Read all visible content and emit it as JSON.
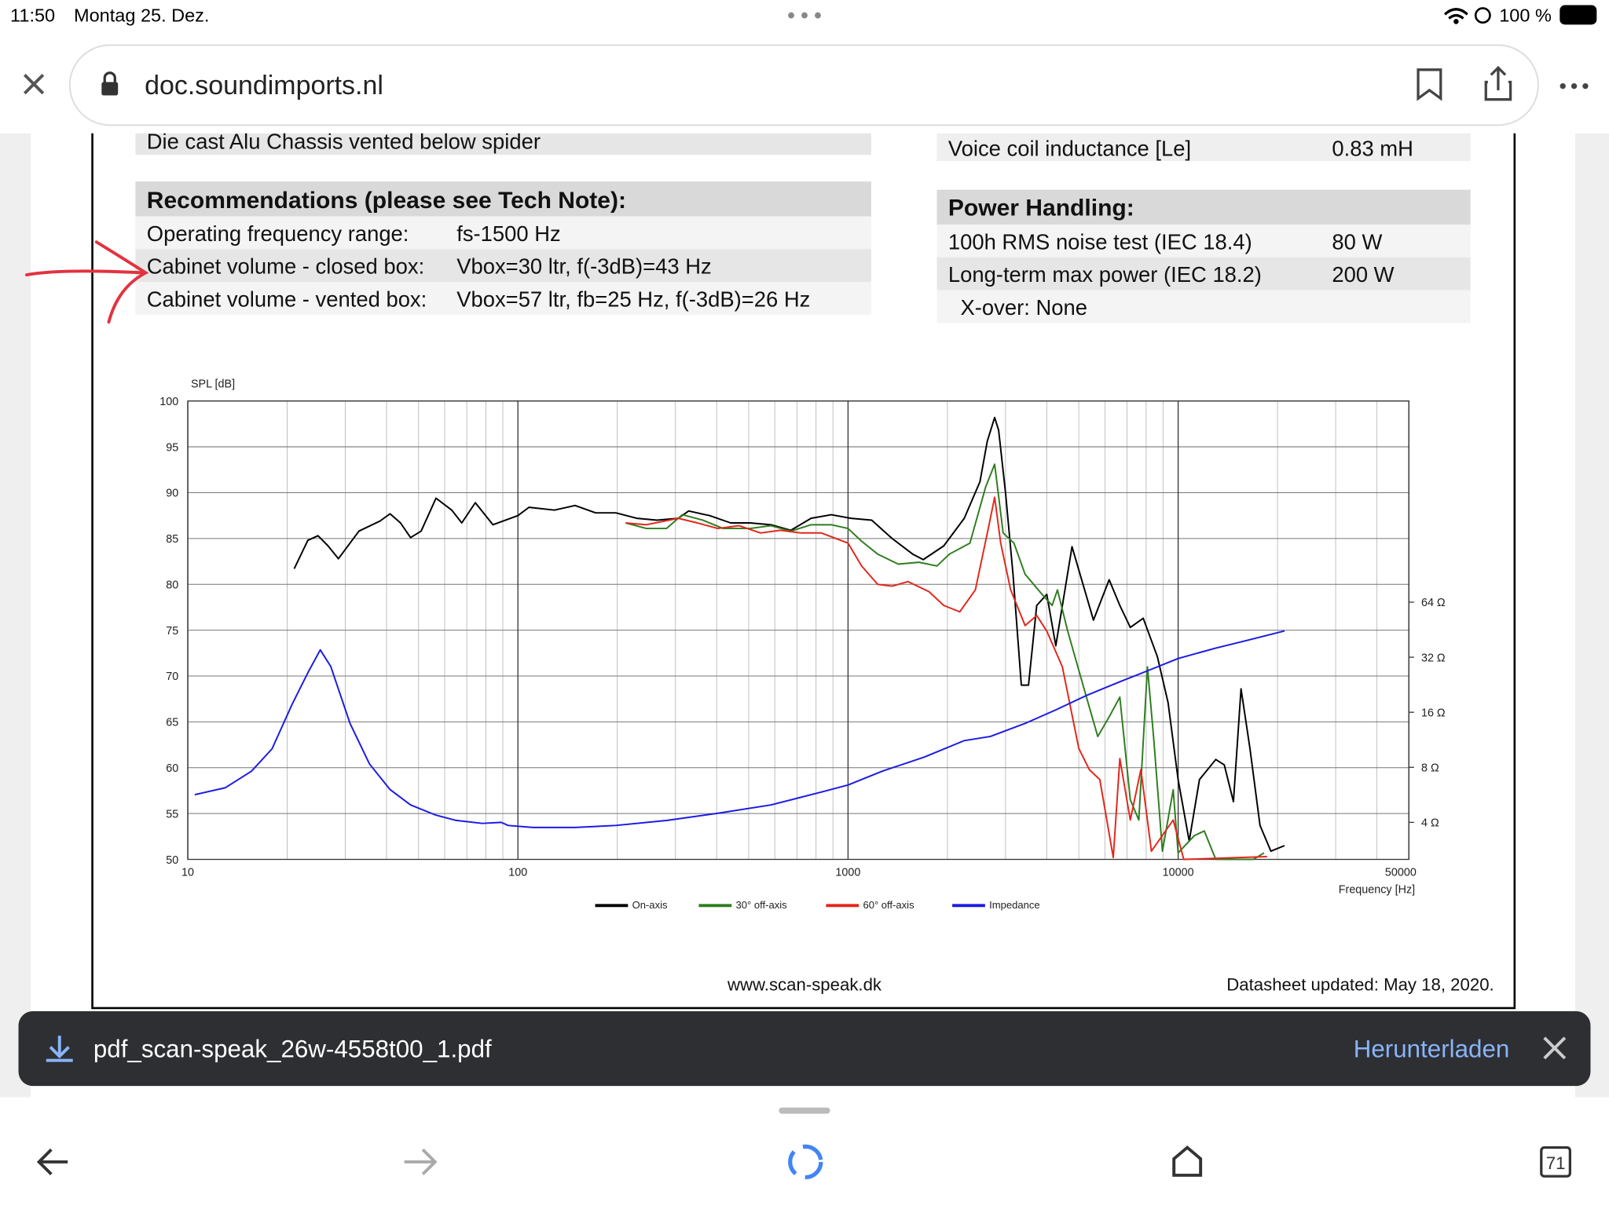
{
  "status_bar": {
    "time": "11:50",
    "date": "Montag 25. Dez.",
    "battery": "100 %"
  },
  "browser": {
    "url": "doc.soundimports.nl"
  },
  "document": {
    "cut_line": "Die cast Alu Chassis vented below spider",
    "inductance": [
      "Voice coil inductance [Le]",
      "0.83 mH"
    ],
    "recommendations": {
      "title": "Recommendations (please see Tech Note):",
      "rows": [
        [
          "Operating frequency range:",
          "fs-1500 Hz"
        ],
        [
          "Cabinet volume - closed box:",
          "Vbox=30 ltr, f(-3dB)=43 Hz"
        ],
        [
          "Cabinet volume - vented box:",
          "Vbox=57 ltr, fb=25 Hz, f(-3dB)=26 Hz"
        ]
      ]
    },
    "power": {
      "title": "Power Handling:",
      "rows": [
        [
          "100h RMS noise test (IEC 18.4)",
          "80 W"
        ],
        [
          "Long-term max power (IEC 18.2)",
          "200 W"
        ]
      ],
      "xover": "X-over: None"
    },
    "website": "www.scan-speak.dk",
    "updated": "Datasheet updated: May 18, 2020."
  },
  "chart_data": {
    "type": "line",
    "y_label": "SPL [dB]",
    "x_label": "Frequency [Hz]",
    "xlim": [
      10,
      50000
    ],
    "xlog": true,
    "xticks": [
      10,
      100,
      1000,
      10000,
      50000
    ],
    "ylim": [
      50,
      100
    ],
    "yticks": [
      50,
      55,
      60,
      65,
      70,
      75,
      80,
      85,
      90,
      95,
      100
    ],
    "y2lim": [
      2.51,
      806
    ],
    "y2log": true,
    "y2ticks": [
      {
        "value": 4,
        "label": "4 Ω"
      },
      {
        "value": 8,
        "label": "8 Ω"
      },
      {
        "value": 16,
        "label": "16 Ω"
      },
      {
        "value": 32,
        "label": "32 Ω"
      },
      {
        "value": 64,
        "label": "64 Ω"
      }
    ],
    "grid": true,
    "series": [
      {
        "name": "On-axis",
        "color": "#000000",
        "x": [
          21,
          23.1,
          24.8,
          26.6,
          28.6,
          33,
          38.2,
          41,
          44.1,
          47.3,
          50.9,
          56.5,
          63,
          67.6,
          74.3,
          84,
          100,
          108,
          129,
          149,
          172,
          198,
          229,
          264,
          306,
          329,
          381,
          441,
          505,
          584,
          671,
          773,
          890,
          1020,
          1180,
          1360,
          1570,
          1690,
          1950,
          2250,
          2510,
          2640,
          2780,
          2860,
          3000,
          3160,
          3350,
          3520,
          3730,
          4000,
          4260,
          4770,
          5540,
          6180,
          6660,
          7160,
          7840,
          8650,
          9320,
          10000,
          10800,
          11600,
          13000,
          13800,
          14700,
          15500,
          16500,
          17700,
          19100,
          21000
        ],
        "values": [
          81.7,
          84.8,
          85.3,
          84.2,
          82.8,
          85.8,
          86.9,
          87.7,
          86.7,
          85.1,
          85.8,
          89.4,
          88.1,
          86.7,
          88.9,
          86.5,
          87.5,
          88.4,
          88.1,
          88.6,
          87.8,
          87.8,
          87.2,
          87,
          87.2,
          88,
          87.5,
          86.7,
          86.7,
          86.5,
          85.9,
          87.2,
          87.6,
          87.2,
          87,
          85,
          83.3,
          82.7,
          84.2,
          87.2,
          91.2,
          95.6,
          98.2,
          96.8,
          90,
          81.1,
          69,
          69,
          77.7,
          78.9,
          73.3,
          84.1,
          76.1,
          80.5,
          77.7,
          75.3,
          76.3,
          72.1,
          67.1,
          58.7,
          52,
          58.7,
          60.9,
          60.3,
          56.3,
          68.6,
          62.1,
          53.7,
          50.9,
          51.5
        ]
      },
      {
        "name": "30° off-axis",
        "color": "#2e7d1e",
        "x": [
          212,
          245,
          282,
          315,
          363,
          418,
          505,
          584,
          671,
          773,
          890,
          1000,
          1100,
          1230,
          1420,
          1640,
          1860,
          2030,
          2340,
          2610,
          2780,
          2950,
          3180,
          3440,
          3870,
          4150,
          4310,
          4630,
          5180,
          5710,
          6150,
          6660,
          7160,
          7600,
          8070,
          8430,
          8960,
          9660,
          10000,
          11200,
          12000,
          13000,
          16900,
          18200
        ],
        "values": [
          86.7,
          86.1,
          86.1,
          87.6,
          87,
          86.1,
          86.1,
          86.4,
          85.8,
          86.5,
          86.5,
          86.1,
          84.7,
          83.3,
          82.2,
          82.4,
          82,
          83.3,
          84.5,
          90.6,
          93.1,
          85.6,
          84.5,
          81.1,
          78.9,
          77.7,
          79.4,
          74.9,
          68.7,
          63.4,
          65.4,
          67.7,
          56.5,
          54.3,
          71,
          63.2,
          50.9,
          57.6,
          50.7,
          52.6,
          53.1,
          50,
          50,
          50.7
        ]
      },
      {
        "name": "60° off-axis",
        "color": "#e3261b",
        "x": [
          212,
          245,
          306,
          350,
          403,
          468,
          543,
          624,
          720,
          830,
          1000,
          1100,
          1230,
          1360,
          1520,
          1760,
          1950,
          2180,
          2430,
          2660,
          2780,
          2900,
          3110,
          3440,
          3730,
          4000,
          4460,
          5000,
          5380,
          5790,
          6360,
          6660,
          7160,
          7710,
          8300,
          9660,
          10400,
          18600
        ],
        "values": [
          86.7,
          86.5,
          87.2,
          86.7,
          86.1,
          86.4,
          85.6,
          85.9,
          85.6,
          85.6,
          84.5,
          82,
          80,
          79.8,
          80.3,
          79.2,
          77.7,
          77,
          79.4,
          86.1,
          89.5,
          84.5,
          79.4,
          75.5,
          76.6,
          74.9,
          71,
          62.1,
          59.8,
          58.7,
          50.2,
          61,
          54.3,
          59.8,
          50.9,
          54.3,
          50,
          50.3
        ]
      },
      {
        "name": "Impedance",
        "color": "#1a1ae6",
        "axis": "y2",
        "x": [
          10.5,
          13,
          15.6,
          18,
          20.7,
          23.2,
          25.2,
          27.1,
          31,
          35.5,
          41,
          47.3,
          56.5,
          65,
          78,
          89,
          93.4,
          111,
          149,
          198,
          283,
          404,
          584,
          832,
          1000,
          1270,
          1700,
          2250,
          2700,
          3440,
          4260,
          5290,
          6660,
          8300,
          10000,
          13000,
          16100,
          21000
        ],
        "values": [
          5.67,
          6.19,
          7.62,
          10.1,
          17.7,
          26.7,
          35.1,
          28.5,
          13.9,
          8.36,
          6.05,
          4.98,
          4.38,
          4.1,
          3.95,
          4,
          3.85,
          3.75,
          3.75,
          3.85,
          4.1,
          4.49,
          4.98,
          5.86,
          6.4,
          7.62,
          9.1,
          11.2,
          11.8,
          13.9,
          16.5,
          19.8,
          23.5,
          27.5,
          31.5,
          35.9,
          39.5,
          44.6
        ]
      }
    ]
  },
  "download": {
    "file": "pdf_scan-speak_26w-4558t00_1.pdf",
    "action": "Herunterladen"
  },
  "toolbar": {
    "tabs": 71
  }
}
